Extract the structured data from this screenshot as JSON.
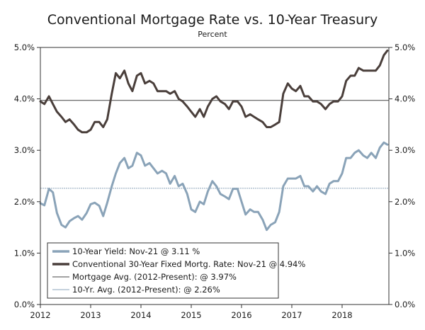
{
  "chart_data": {
    "type": "line",
    "title": "Conventional Mortgage Rate vs. 10-Year Treasury",
    "subtitle": "Percent",
    "xlim": [
      2012.0,
      2018.93
    ],
    "ylim": [
      0.0,
      5.0
    ],
    "x_ticks": [
      {
        "value": 2012,
        "label": "2012"
      },
      {
        "value": 2013,
        "label": "2013"
      },
      {
        "value": 2014,
        "label": "2014"
      },
      {
        "value": 2015,
        "label": "2015"
      },
      {
        "value": 2016,
        "label": "2016"
      },
      {
        "value": 2017,
        "label": "2017"
      },
      {
        "value": 2018,
        "label": "2018"
      }
    ],
    "y_ticks": [
      {
        "value": 0,
        "label": "0.0%"
      },
      {
        "value": 1,
        "label": "1.0%"
      },
      {
        "value": 2,
        "label": "2.0%"
      },
      {
        "value": 3,
        "label": "3.0%"
      },
      {
        "value": 4,
        "label": "4.0%"
      },
      {
        "value": 5,
        "label": "5.0%"
      }
    ],
    "colors": {
      "treasury": "#8aa3b8",
      "mortgage": "#4a3f3b",
      "mortgage_avg": "#444444",
      "treasury_avg": "#8aa3b8",
      "axis": "#333333"
    },
    "series": [
      {
        "name": "10-Year Yield",
        "x": [
          2012.0,
          2012.08,
          2012.17,
          2012.25,
          2012.33,
          2012.42,
          2012.5,
          2012.58,
          2012.67,
          2012.75,
          2012.83,
          2012.92,
          2013.0,
          2013.08,
          2013.17,
          2013.25,
          2013.33,
          2013.42,
          2013.5,
          2013.58,
          2013.67,
          2013.75,
          2013.83,
          2013.92,
          2014.0,
          2014.08,
          2014.17,
          2014.25,
          2014.33,
          2014.42,
          2014.5,
          2014.58,
          2014.67,
          2014.75,
          2014.83,
          2014.92,
          2015.0,
          2015.08,
          2015.17,
          2015.25,
          2015.33,
          2015.42,
          2015.5,
          2015.58,
          2015.67,
          2015.75,
          2015.83,
          2015.92,
          2016.0,
          2016.08,
          2016.17,
          2016.25,
          2016.33,
          2016.42,
          2016.5,
          2016.58,
          2016.67,
          2016.75,
          2016.83,
          2016.92,
          2017.0,
          2017.08,
          2017.17,
          2017.25,
          2017.33,
          2017.42,
          2017.5,
          2017.58,
          2017.67,
          2017.75,
          2017.83,
          2017.92,
          2018.0,
          2018.08,
          2018.17,
          2018.25,
          2018.33,
          2018.42,
          2018.5,
          2018.58,
          2018.67,
          2018.75,
          2018.83,
          2018.9
        ],
        "values": [
          1.97,
          1.93,
          2.25,
          2.18,
          1.78,
          1.55,
          1.5,
          1.62,
          1.68,
          1.72,
          1.65,
          1.78,
          1.95,
          1.98,
          1.92,
          1.72,
          1.98,
          2.3,
          2.55,
          2.75,
          2.85,
          2.65,
          2.7,
          2.95,
          2.9,
          2.7,
          2.75,
          2.65,
          2.55,
          2.6,
          2.55,
          2.35,
          2.5,
          2.3,
          2.35,
          2.15,
          1.85,
          1.8,
          2.0,
          1.95,
          2.2,
          2.4,
          2.3,
          2.15,
          2.1,
          2.05,
          2.25,
          2.25,
          2.0,
          1.75,
          1.85,
          1.8,
          1.8,
          1.65,
          1.45,
          1.55,
          1.6,
          1.8,
          2.3,
          2.45,
          2.45,
          2.45,
          2.5,
          2.3,
          2.3,
          2.2,
          2.3,
          2.2,
          2.15,
          2.35,
          2.4,
          2.4,
          2.55,
          2.85,
          2.85,
          2.95,
          3.0,
          2.9,
          2.85,
          2.95,
          2.85,
          3.05,
          3.15,
          3.11
        ]
      },
      {
        "name": "Conventional 30-Year Fixed Mortg. Rate",
        "x": [
          2012.0,
          2012.08,
          2012.17,
          2012.25,
          2012.33,
          2012.42,
          2012.5,
          2012.58,
          2012.67,
          2012.75,
          2012.83,
          2012.92,
          2013.0,
          2013.08,
          2013.17,
          2013.25,
          2013.33,
          2013.42,
          2013.5,
          2013.58,
          2013.67,
          2013.75,
          2013.83,
          2013.92,
          2014.0,
          2014.08,
          2014.17,
          2014.25,
          2014.33,
          2014.42,
          2014.5,
          2014.58,
          2014.67,
          2014.75,
          2014.83,
          2014.92,
          2015.0,
          2015.08,
          2015.17,
          2015.25,
          2015.33,
          2015.42,
          2015.5,
          2015.58,
          2015.67,
          2015.75,
          2015.83,
          2015.92,
          2016.0,
          2016.08,
          2016.17,
          2016.25,
          2016.33,
          2016.42,
          2016.5,
          2016.58,
          2016.67,
          2016.75,
          2016.83,
          2016.92,
          2017.0,
          2017.08,
          2017.17,
          2017.25,
          2017.33,
          2017.42,
          2017.5,
          2017.58,
          2017.67,
          2017.75,
          2017.83,
          2017.92,
          2018.0,
          2018.08,
          2018.17,
          2018.25,
          2018.33,
          2018.42,
          2018.5,
          2018.58,
          2018.67,
          2018.75,
          2018.83,
          2018.9
        ],
        "values": [
          3.95,
          3.9,
          4.05,
          3.9,
          3.75,
          3.65,
          3.55,
          3.6,
          3.5,
          3.4,
          3.35,
          3.35,
          3.4,
          3.55,
          3.55,
          3.45,
          3.6,
          4.1,
          4.5,
          4.4,
          4.55,
          4.3,
          4.15,
          4.45,
          4.5,
          4.3,
          4.35,
          4.3,
          4.15,
          4.15,
          4.15,
          4.1,
          4.15,
          4.0,
          3.95,
          3.85,
          3.75,
          3.65,
          3.8,
          3.65,
          3.85,
          4.0,
          4.05,
          3.95,
          3.9,
          3.8,
          3.95,
          3.95,
          3.85,
          3.65,
          3.7,
          3.65,
          3.6,
          3.55,
          3.45,
          3.45,
          3.5,
          3.55,
          4.1,
          4.3,
          4.2,
          4.15,
          4.25,
          4.05,
          4.05,
          3.95,
          3.95,
          3.9,
          3.8,
          3.9,
          3.95,
          3.95,
          4.05,
          4.35,
          4.45,
          4.45,
          4.6,
          4.55,
          4.55,
          4.55,
          4.55,
          4.65,
          4.85,
          4.94
        ]
      }
    ],
    "reference_lines": [
      {
        "name": "Mortgage Avg. (2012-Present)",
        "value": 3.97
      },
      {
        "name": "10-Yr. Avg. (2012-Present)",
        "value": 2.26
      }
    ],
    "legend": {
      "placement": "bottom-left",
      "entries": [
        {
          "label": "10-Year Yield: Nov-21 @ 3.11 %"
        },
        {
          "label": "Conventional 30-Year Fixed Mortg. Rate: Nov-21 @ 4.94%"
        },
        {
          "label": "Mortgage Avg. (2012-Present): @ 3.97%"
        },
        {
          "label": "10-Yr. Avg. (2012-Present): @ 2.26%"
        }
      ]
    }
  }
}
